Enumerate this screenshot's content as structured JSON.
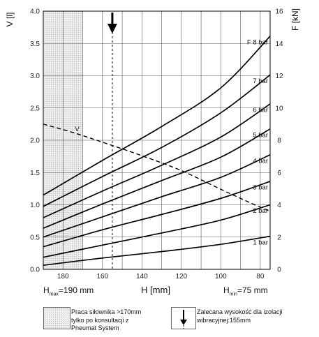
{
  "chart_data": {
    "type": "line",
    "x_axis": {
      "label": "H [mm]",
      "min": 75,
      "max": 190,
      "reversed": true,
      "ticks": [
        180,
        160,
        140,
        120,
        100,
        80
      ]
    },
    "y_left": {
      "label": "V [l]",
      "min": 0,
      "max": 4.0,
      "ticks": [
        "0.0",
        "0.5",
        "1.0",
        "1.5",
        "2.0",
        "2.5",
        "3.0",
        "3.5",
        "4.0"
      ]
    },
    "y_right": {
      "label": "F [kN]",
      "min": 0,
      "max": 16,
      "ticks": [
        "0",
        "2",
        "4",
        "6",
        "8",
        "10",
        "12",
        "14",
        "16"
      ]
    },
    "grid": true,
    "series": [
      {
        "name": "1 bar",
        "axis": "right",
        "points": [
          [
            190,
            0.25
          ],
          [
            160,
            0.7
          ],
          [
            130,
            1.1
          ],
          [
            100,
            1.55
          ],
          [
            75,
            2.05
          ]
        ]
      },
      {
        "name": "2 bar",
        "axis": "right",
        "points": [
          [
            190,
            0.75
          ],
          [
            160,
            1.5
          ],
          [
            130,
            2.25
          ],
          [
            100,
            3.05
          ],
          [
            75,
            4.0
          ]
        ]
      },
      {
        "name": "3 bar",
        "axis": "right",
        "points": [
          [
            190,
            1.4
          ],
          [
            160,
            2.45
          ],
          [
            130,
            3.4
          ],
          [
            100,
            4.4
          ],
          [
            75,
            5.45
          ]
        ]
      },
      {
        "name": "4 bar",
        "axis": "right",
        "points": [
          [
            190,
            2.0
          ],
          [
            160,
            3.25
          ],
          [
            130,
            4.5
          ],
          [
            100,
            5.7
          ],
          [
            75,
            7.1
          ]
        ]
      },
      {
        "name": "5 bar",
        "axis": "right",
        "points": [
          [
            190,
            2.55
          ],
          [
            160,
            4.05
          ],
          [
            130,
            5.5
          ],
          [
            100,
            6.95
          ],
          [
            75,
            8.7
          ]
        ]
      },
      {
        "name": "6 bar",
        "axis": "right",
        "points": [
          [
            190,
            3.2
          ],
          [
            160,
            4.85
          ],
          [
            130,
            6.45
          ],
          [
            100,
            8.2
          ],
          [
            75,
            10.25
          ]
        ]
      },
      {
        "name": "7 bar",
        "axis": "right",
        "points": [
          [
            190,
            3.9
          ],
          [
            160,
            5.75
          ],
          [
            130,
            7.55
          ],
          [
            100,
            9.7
          ],
          [
            75,
            12.05
          ]
        ]
      },
      {
        "name": "8 bar",
        "axis": "right",
        "points": [
          [
            190,
            4.6
          ],
          [
            160,
            6.75
          ],
          [
            130,
            8.85
          ],
          [
            100,
            11.25
          ],
          [
            75,
            14.45
          ]
        ]
      },
      {
        "name": "V",
        "axis": "left",
        "dashed": true,
        "points": [
          [
            190,
            2.25
          ],
          [
            175,
            2.12
          ],
          [
            160,
            1.97
          ],
          [
            140,
            1.76
          ],
          [
            120,
            1.53
          ],
          [
            100,
            1.24
          ],
          [
            85,
            1.03
          ],
          [
            75,
            0.9
          ]
        ]
      }
    ],
    "line_labels": {
      "1 bar": "1 bar",
      "2 bar": "2 bar",
      "3 bar": "3 bar",
      "4 bar": "4 bar",
      "5 bar": "5 bar",
      "6 bar": "6 bar",
      "7 bar": "7 bar",
      "8 bar": "F 8 bar",
      "V": "V"
    },
    "hatched_region": {
      "from": 170,
      "to": 190
    },
    "recommended_height": 155,
    "h_max": {
      "prefix": "H",
      "sub": "max",
      "suffix": "=190 mm"
    },
    "h_min": {
      "prefix": "H",
      "sub": "min",
      "suffix": "=75 mm"
    }
  },
  "legend": {
    "hatched_text": [
      "Praca siłownika >170mm",
      "tylko po konsultacji z",
      "Pneumat System"
    ],
    "arrow_text": [
      "Zalecana wysokość dla izolacji",
      "wibracyjnej:155mm"
    ]
  },
  "colors": {
    "line": "#000000",
    "grid": "#555555",
    "hatch": "#bcbcbc"
  }
}
